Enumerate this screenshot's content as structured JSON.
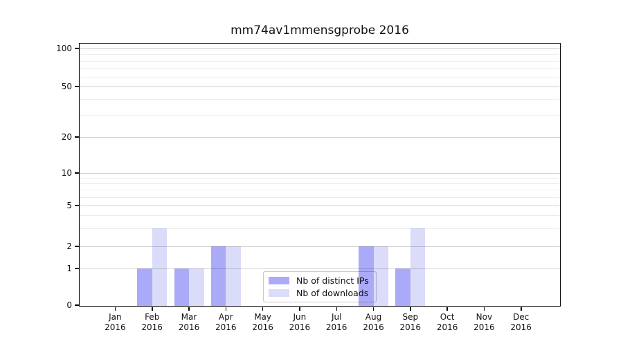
{
  "title": "mm74av1mmensgprobe 2016",
  "chart_data": {
    "type": "bar",
    "title": "mm74av1mmensgprobe 2016",
    "xlabel": "",
    "ylabel": "",
    "categories": [
      "Jan 2016",
      "Feb 2016",
      "Mar 2016",
      "Apr 2016",
      "May 2016",
      "Jun 2016",
      "Jul 2016",
      "Aug 2016",
      "Sep 2016",
      "Oct 2016",
      "Nov 2016",
      "Dec 2016"
    ],
    "series": [
      {
        "name": "Nb of distinct IPs",
        "color": "#aaaaf8",
        "values": [
          0,
          1,
          1,
          2,
          0,
          0,
          0,
          2,
          1,
          0,
          0,
          0
        ]
      },
      {
        "name": "Nb of downloads",
        "color": "#dbdbfa",
        "values": [
          0,
          3,
          1,
          2,
          0,
          0,
          0,
          2,
          3,
          0,
          0,
          0
        ]
      }
    ],
    "yscale": "symlog",
    "yticks": [
      0,
      1,
      2,
      5,
      10,
      20,
      50,
      100
    ],
    "ylim": [
      0,
      100
    ],
    "grid": true,
    "legend_position": "lower center inside"
  },
  "colors": {
    "distinct_ips": "#aaaaf8",
    "downloads": "#dbdbfa",
    "grid_major": "#cfcfcf",
    "grid_minor": "#ebebeb",
    "spine": "#000000"
  }
}
